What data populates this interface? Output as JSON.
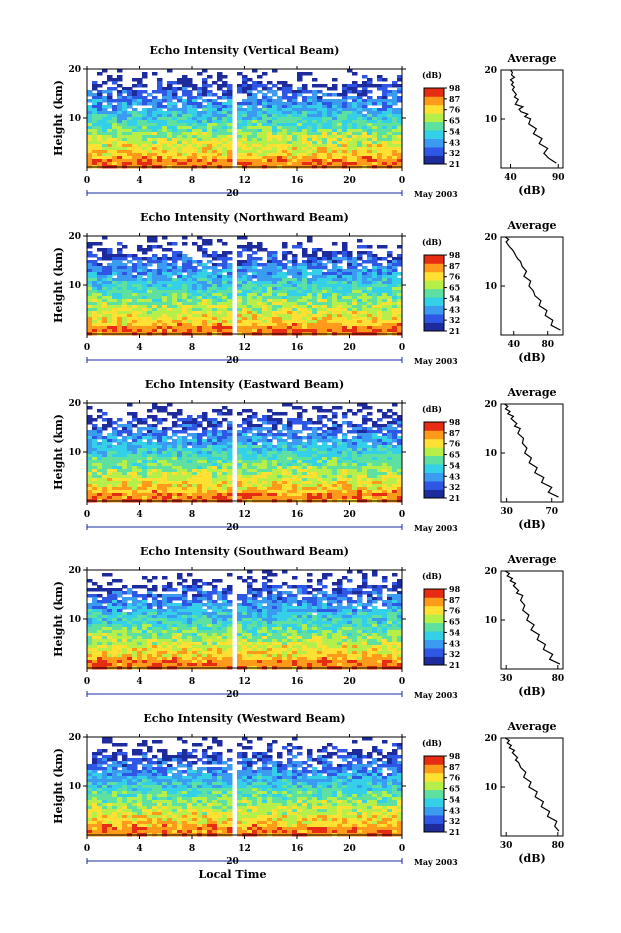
{
  "chart_data": {
    "type": "heatmap",
    "x_axis": {
      "label": "Local Time",
      "ticks": [
        "0",
        "4",
        "8",
        "12",
        "16",
        "20",
        "0"
      ],
      "date_tick": "20",
      "month_label": "May 2003"
    },
    "y_axis": {
      "label": "Height (km)",
      "ticks": [
        "10",
        "20"
      ],
      "range": [
        0,
        20
      ]
    },
    "colorbar": {
      "unit": "(dB)",
      "ticks": [
        "21",
        "32",
        "43",
        "54",
        "65",
        "76",
        "87",
        "98"
      ],
      "colors": [
        "#1e2b9c",
        "#2e57e6",
        "#3b9bf0",
        "#33d0e8",
        "#5de0a0",
        "#b7ef4a",
        "#ffe033",
        "#ff9a1a",
        "#e62d14"
      ]
    },
    "profile_title": "Average",
    "profile_xlabel": "(dB)",
    "panels": [
      {
        "title": "Echo Intensity (Vertical Beam)",
        "profile_ticks": [
          "40",
          "90"
        ],
        "profile_range": [
          30,
          95
        ],
        "profile_x": [
          88,
          80,
          75,
          79,
          70,
          73,
          64,
          67,
          59,
          61,
          55,
          58,
          51,
          49,
          53,
          45,
          48,
          44,
          46,
          42,
          44,
          41,
          43,
          40,
          44,
          41,
          42,
          40
        ],
        "profile_y": [
          1,
          2,
          3,
          4,
          5,
          6,
          7,
          8,
          9,
          10,
          10.5,
          11,
          11.5,
          12,
          12.5,
          13,
          14,
          14.5,
          15,
          16,
          16.5,
          17,
          17.5,
          18,
          18.5,
          19,
          19.5,
          20
        ]
      },
      {
        "title": "Echo Intensity (Northward Beam)",
        "profile_ticks": [
          "40",
          "80"
        ],
        "profile_range": [
          25,
          98
        ],
        "profile_x": [
          95,
          84,
          86,
          77,
          79,
          70,
          72,
          65,
          63,
          58,
          60,
          52,
          55,
          50,
          48,
          45,
          43,
          40,
          38,
          35,
          33,
          31,
          34,
          30
        ],
        "profile_y": [
          1,
          2,
          3,
          4,
          5,
          6,
          7,
          8,
          9,
          10,
          11,
          12,
          13,
          14,
          15,
          15.5,
          16,
          17,
          17.5,
          18,
          18.5,
          19,
          19.5,
          20
        ]
      },
      {
        "title": "Echo Intensity (Eastward Beam)",
        "profile_ticks": [
          "30",
          "70"
        ],
        "profile_range": [
          25,
          80
        ],
        "profile_x": [
          76,
          67,
          70,
          61,
          63,
          55,
          57,
          50,
          52,
          46,
          48,
          44,
          45,
          40,
          42,
          37,
          39,
          34,
          36,
          31,
          33,
          29,
          31,
          28
        ],
        "profile_y": [
          1,
          2,
          3,
          4,
          5,
          6,
          7,
          8,
          9,
          10,
          11,
          12,
          13,
          14,
          15,
          15.5,
          16,
          17,
          17.5,
          18,
          18.5,
          19,
          19.5,
          20
        ]
      },
      {
        "title": "Echo Intensity (Southward Beam)",
        "profile_ticks": [
          "30",
          "80"
        ],
        "profile_range": [
          25,
          85
        ],
        "profile_x": [
          82,
          72,
          75,
          66,
          68,
          60,
          62,
          54,
          57,
          50,
          52,
          46,
          48,
          44,
          46,
          40,
          42,
          37,
          39,
          34,
          36,
          31,
          33,
          29
        ],
        "profile_y": [
          1,
          2,
          3,
          4,
          5,
          6,
          7,
          8,
          9,
          10,
          11,
          12,
          13,
          14,
          15,
          15.5,
          16,
          17,
          17.5,
          18,
          18.5,
          19,
          19.5,
          20
        ]
      },
      {
        "title": "Echo Intensity (Westward Beam)",
        "profile_ticks": [
          "30",
          "80"
        ],
        "profile_range": [
          25,
          85
        ],
        "profile_x": [
          81,
          77,
          79,
          70,
          72,
          64,
          66,
          58,
          60,
          52,
          54,
          47,
          49,
          44,
          42,
          39,
          41,
          36,
          38,
          33,
          35,
          31,
          33,
          29
        ],
        "profile_y": [
          1,
          2,
          3,
          4,
          5,
          6,
          7,
          8,
          9,
          10,
          11,
          12,
          13,
          14,
          15,
          15.5,
          16,
          17,
          17.5,
          18,
          18.5,
          19,
          19.5,
          20
        ]
      }
    ]
  }
}
